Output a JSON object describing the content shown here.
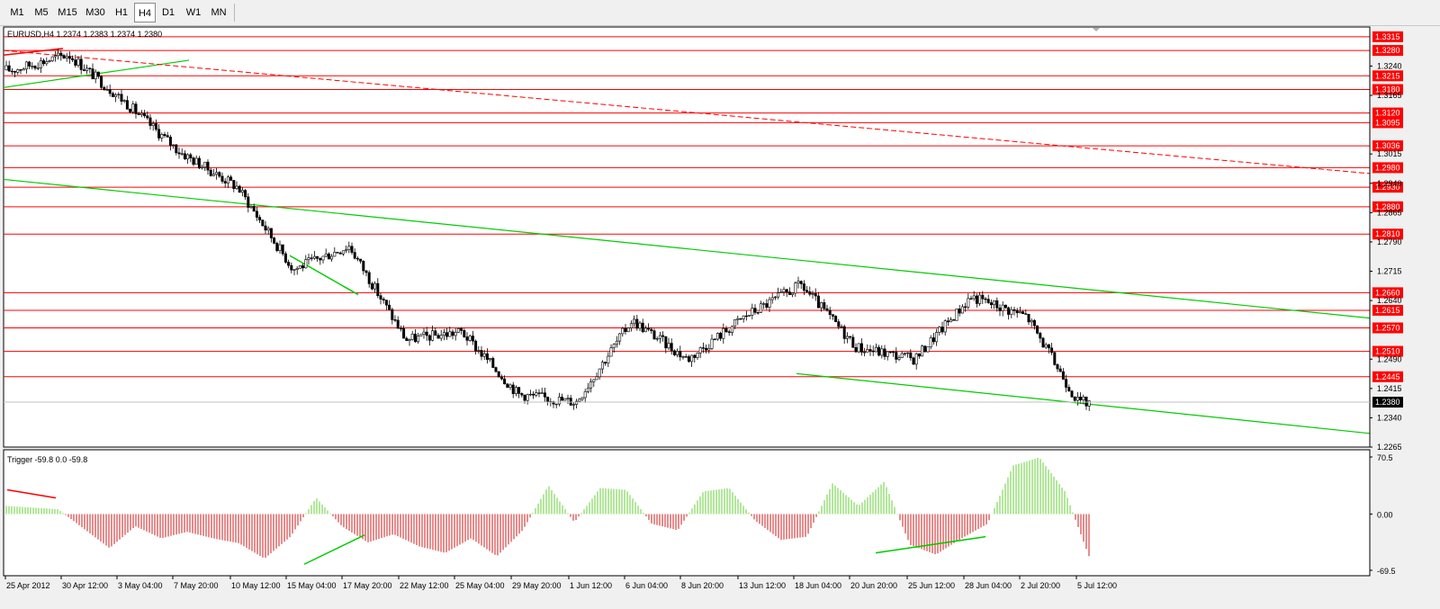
{
  "toolbar": {
    "timeframes": [
      "M1",
      "M5",
      "M15",
      "M30",
      "H1",
      "H4",
      "D1",
      "W1",
      "MN"
    ],
    "active": "H4"
  },
  "main_chart": {
    "header": "EURUSD,H4  1.2374 1.2383 1.2374 1.2380",
    "current_price": "1.2380",
    "colors": {
      "up": "#000000",
      "down": "#000000",
      "hline": "#ff0000",
      "trend_green": "#00cc00",
      "trend_red": "#ff0000",
      "label_bg": "#ff0000",
      "current_bg": "#000000"
    }
  },
  "indicator": {
    "header": "Trigger -59.8 0.0 -59.8",
    "axis_labels": [
      "70.5",
      "0.00",
      "-69.5"
    ],
    "colors": {
      "positive": "#7ed956",
      "negative": "#d94040"
    }
  },
  "x_labels": [
    "25 Apr 2012",
    "30 Apr 12:00",
    "3 May 04:00",
    "7 May 20:00",
    "10 May 12:00",
    "15 May 04:00",
    "17 May 20:00",
    "22 May 12:00",
    "25 May 04:00",
    "29 May 20:00",
    "1 Jun 12:00",
    "6 Jun 04:00",
    "8 Jun 20:00",
    "13 Jun 12:00",
    "18 Jun 04:00",
    "20 Jun 20:00",
    "25 Jun 12:00",
    "28 Jun 04:00",
    "2 Jul 20:00",
    "5 Jul 12:00"
  ],
  "chart_data": [
    {
      "type": "candlestick",
      "title": "EURUSD,H4",
      "ylim": [
        1.2265,
        1.334
      ],
      "y_ticks": [
        "1.3240",
        "1.3165",
        "1.3015",
        "1.2940",
        "1.2865",
        "1.2790",
        "1.2715",
        "1.2640",
        "1.2490",
        "1.2415",
        "1.2340",
        "1.2265"
      ],
      "horizontal_levels": [
        "1.3315",
        "1.3280",
        "1.3215",
        "1.3180",
        "1.3120",
        "1.3095",
        "1.3036",
        "1.2980",
        "1.2930",
        "1.2880",
        "1.2810",
        "1.2660",
        "1.2615",
        "1.2570",
        "1.2510",
        "1.2445"
      ],
      "close_path": [
        [
          "25 Apr 2012",
          1.323
        ],
        [
          "30 Apr 12:00",
          1.327
        ],
        [
          "3 May 04:00",
          1.315
        ],
        [
          "7 May 20:00",
          1.302
        ],
        [
          "10 May 12:00",
          1.293
        ],
        [
          "15 May 04:00",
          1.272
        ],
        [
          "17 May 20:00",
          1.278
        ],
        [
          "22 May 12:00",
          1.254
        ],
        [
          "25 May 04:00",
          1.256
        ],
        [
          "29 May 20:00",
          1.24
        ],
        [
          "1 Jun 12:00",
          1.238
        ],
        [
          "6 Jun 04:00",
          1.259
        ],
        [
          "8 Jun 20:00",
          1.249
        ],
        [
          "13 Jun 12:00",
          1.26
        ],
        [
          "18 Jun 04:00",
          1.268
        ],
        [
          "20 Jun 20:00",
          1.252
        ],
        [
          "25 Jun 12:00",
          1.249
        ],
        [
          "28 Jun 04:00",
          1.265
        ],
        [
          "2 Jul 20:00",
          1.26
        ],
        [
          "5 Jul 12:00",
          1.238
        ]
      ]
    },
    {
      "type": "bar",
      "title": "Trigger",
      "ylim": [
        -69.5,
        70.5
      ],
      "y_ticks": [
        "70.5",
        "0.00",
        "-69.5"
      ],
      "values": [
        10,
        8,
        6,
        -18,
        -42,
        -15,
        -30,
        -22,
        -30,
        -36,
        -55,
        -28,
        20,
        -15,
        -35,
        -25,
        -40,
        -48,
        -30,
        -52,
        -20,
        35,
        -10,
        32,
        30,
        -12,
        -20,
        28,
        32,
        -8,
        -32,
        -28,
        38,
        10,
        40,
        -38,
        -50,
        -30,
        -12,
        60,
        70,
        28,
        -58
      ]
    }
  ]
}
